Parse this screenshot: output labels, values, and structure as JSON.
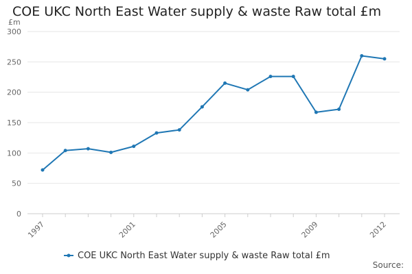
{
  "chart_data": {
    "type": "line",
    "title": "COE UKC North East Water supply & waste Raw total £m",
    "ylabel": "£m",
    "xlabel": "",
    "ylim": [
      0,
      300
    ],
    "yticks": [
      "0",
      "50",
      "100",
      "150",
      "200",
      "250",
      "300"
    ],
    "xlim": [
      1997,
      2012
    ],
    "xtick_labels": [
      "1997",
      "2001",
      "2005",
      "2009",
      "2012"
    ],
    "grid": true,
    "legend_position": "bottom",
    "series": [
      {
        "name": "COE UKC North East Water supply & waste Raw total £m",
        "color": "#1f77b4",
        "x": [
          1997,
          1998,
          1999,
          2000,
          2001,
          2002,
          2003,
          2004,
          2005,
          2006,
          2007,
          2008,
          2009,
          2010,
          2011,
          2012
        ],
        "y": [
          72,
          104,
          107,
          101,
          111,
          133,
          138,
          176,
          215,
          204,
          226,
          226,
          167,
          172,
          260,
          255
        ]
      }
    ]
  },
  "source_label": "Source:"
}
